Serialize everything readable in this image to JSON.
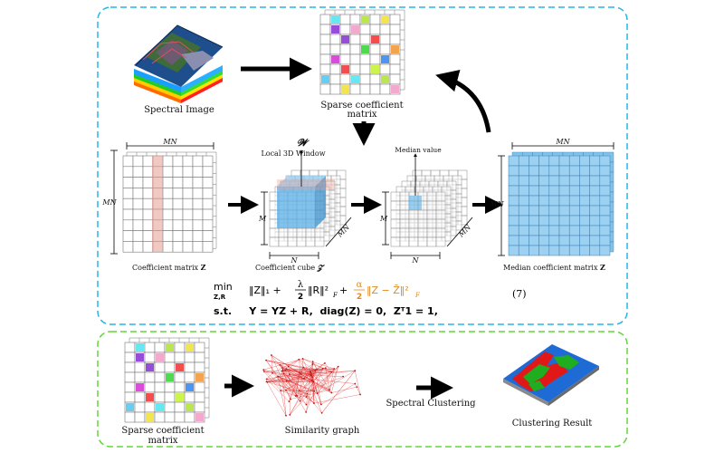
{
  "top_panel": {
    "border_color": "#27b6e8",
    "spectral_image_label": "Spectral Image",
    "sparse_label_line1": "Sparse coefficient",
    "sparse_label_line2": "matrix",
    "coeff_matrix_label": "Coefficient matrix ",
    "coeff_matrix_symbol": "Z",
    "coeff_cube_label": "Coefficient cube ",
    "coeff_cube_symbol": "𝓩",
    "median_matrix_label": "Median coefficient matrix ",
    "median_matrix_symbol": "Z",
    "window_symbol": "𝓦",
    "window_label": "Local 3D Window",
    "median_value_label": "Median value",
    "dim_mn": "MN",
    "dim_m": "M",
    "dim_n": "N",
    "equation": {
      "min_label": "min",
      "min_sub": "Z,R",
      "term1": "‖Z‖₁ + ",
      "lambda_num": "λ",
      "lambda_den": "2",
      "term2": "‖R‖²",
      "term2_sub": "F",
      "plus": " + ",
      "alpha_num": "α",
      "alpha_den": "2",
      "term3": "‖Z − Z̄‖²",
      "term3_sub": "F",
      "alpha_color": "#e08a1e",
      "constraint": "s.t.     Y = YZ + R,  diag(Z) = 0,  Zᵀ1 = 1,",
      "number": "(7)"
    }
  },
  "bottom_panel": {
    "border_color": "#63d63a",
    "sparse_label_line1": "Sparse coefficient",
    "sparse_label_line2": "matrix",
    "graph_label": "Similarity graph",
    "spectral_clustering_label": "Spectral Clustering",
    "result_label": "Clustering Result"
  }
}
